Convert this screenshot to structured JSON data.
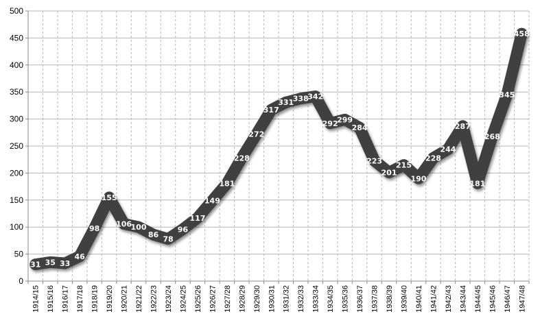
{
  "chart_data": {
    "type": "line",
    "title": "",
    "xlabel": "",
    "ylabel": "",
    "ylim": [
      0,
      500
    ],
    "yticks": [
      0,
      50,
      100,
      150,
      200,
      250,
      300,
      350,
      400,
      450,
      500
    ],
    "grid": {
      "horizontal": "solid",
      "vertical": "dashed"
    },
    "legend": "none",
    "categories": [
      "1914/15",
      "1915/16",
      "1916/17",
      "1917/18",
      "1918/19",
      "1919/20",
      "1920/21",
      "1921/22",
      "1922/23",
      "1923/24",
      "1924/25",
      "1925/26",
      "1926/27",
      "1927/28",
      "1928/29",
      "1929/30",
      "1930/31",
      "1931/32",
      "1932/33",
      "1933/34",
      "1934/35",
      "1935/36",
      "1936/37",
      "1937/38",
      "1938/39",
      "1939/40",
      "1940/41",
      "1941/42",
      "1942/43",
      "1943/44",
      "1944/45",
      "1945/46",
      "1946/47",
      "1947/48"
    ],
    "series": [
      {
        "values": [
          31,
          35,
          33,
          46,
          98,
          155,
          106,
          100,
          86,
          78,
          96,
          117,
          149,
          181,
          228,
          272,
          317,
          331,
          338,
          342,
          292,
          299,
          284,
          223,
          201,
          215,
          190,
          228,
          244,
          287,
          181,
          268,
          345,
          458
        ],
        "color": "#404040",
        "data_labels": true
      }
    ]
  }
}
